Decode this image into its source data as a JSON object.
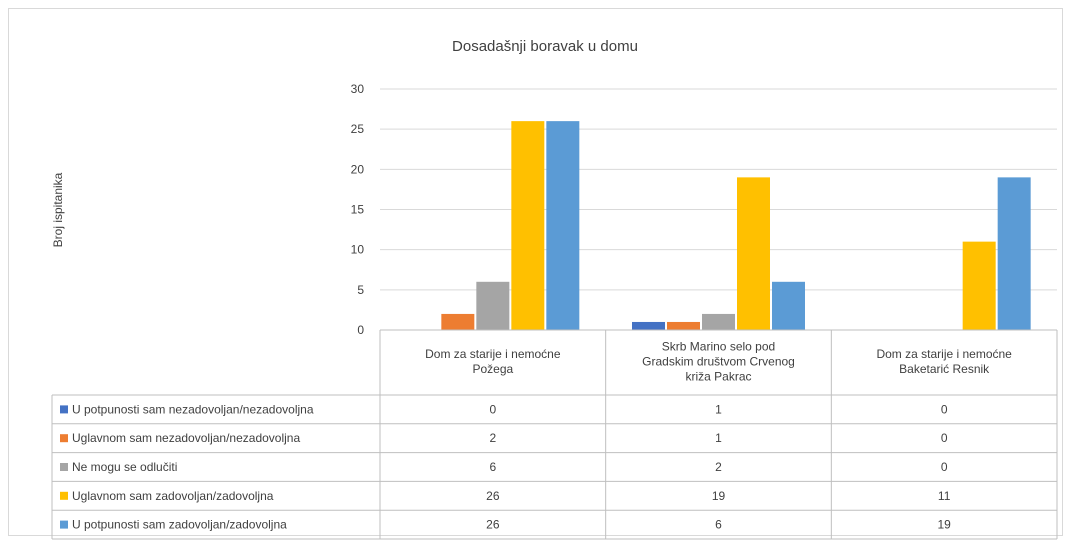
{
  "chart_data": {
    "type": "bar",
    "title": "Dosadašnji boravak u domu",
    "ylabel": "Broj ispitanika",
    "xlabel": "",
    "ylim": [
      0,
      30
    ],
    "yticks": [
      0,
      5,
      10,
      15,
      20,
      25,
      30
    ],
    "grid": true,
    "legend": "data-table-below",
    "categories": [
      [
        "Dom za starije i nemoćne",
        "Požega"
      ],
      [
        "Skrb Marino selo pod",
        "Gradskim društvom Crvenog",
        "križa Pakrac"
      ],
      [
        "Dom za starije i nemoćne",
        "Baketarić Resnik"
      ]
    ],
    "series": [
      {
        "name": "U potpunosti sam nezadovoljan/nezadovoljna",
        "color": "#4472C4",
        "values": [
          0,
          1,
          0
        ]
      },
      {
        "name": "Uglavnom sam nezadovoljan/nezadovoljna",
        "color": "#ED7D31",
        "values": [
          2,
          1,
          0
        ]
      },
      {
        "name": "Ne mogu se odlučiti",
        "color": "#A5A5A5",
        "values": [
          6,
          2,
          0
        ]
      },
      {
        "name": "Uglavnom sam zadovoljan/zadovoljna",
        "color": "#FFC000",
        "values": [
          26,
          19,
          11
        ]
      },
      {
        "name": "U potpunosti sam zadovoljan/zadovoljna",
        "color": "#5B9BD5",
        "values": [
          26,
          6,
          19
        ]
      }
    ]
  }
}
